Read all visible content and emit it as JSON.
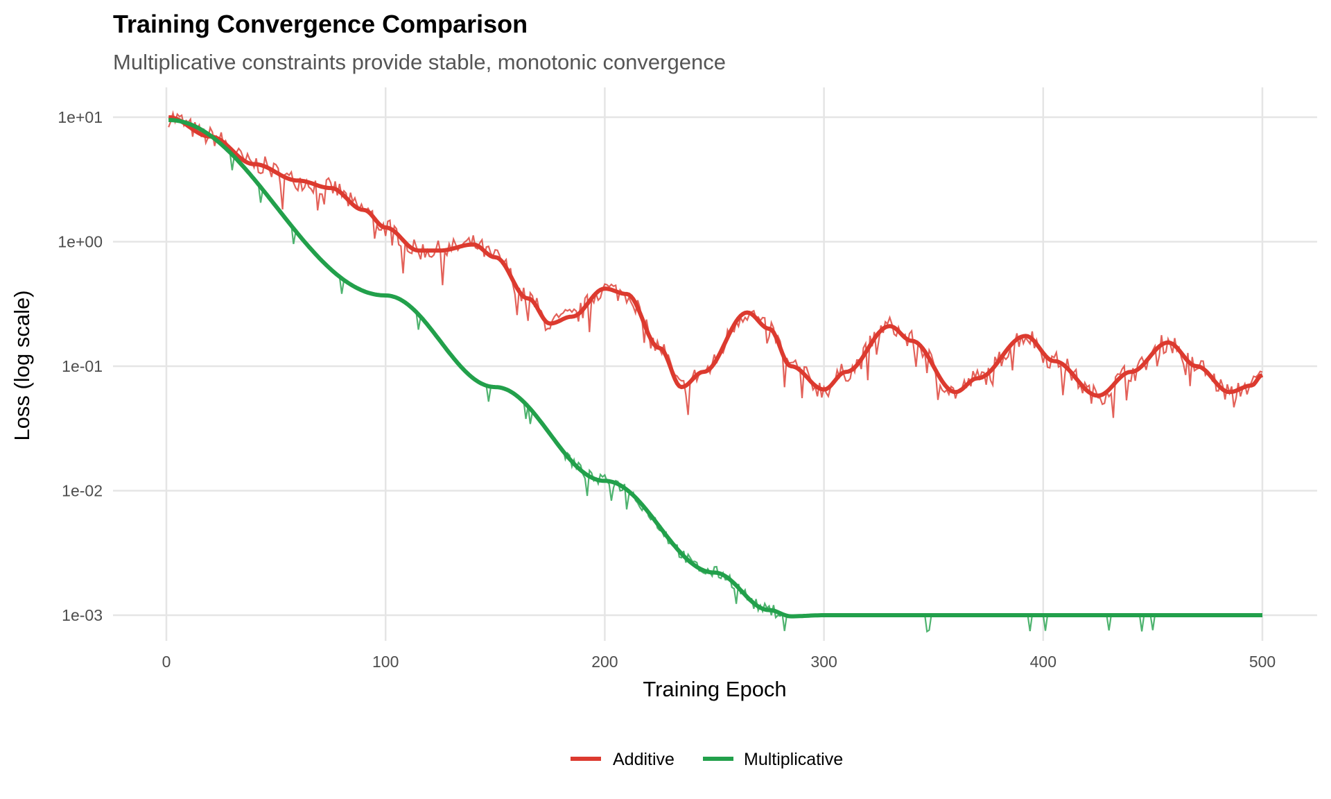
{
  "chart_data": {
    "type": "line",
    "title": "Training Convergence Comparison",
    "subtitle": "Multiplicative constraints provide stable, monotonic convergence",
    "xlabel": "Training Epoch",
    "ylabel": "Loss (log scale)",
    "xlim": [
      -25,
      525
    ],
    "ylim_log10": [
      -3.2,
      0.55
    ],
    "yscale": "log",
    "x_ticks": [
      0,
      100,
      200,
      300,
      400,
      500
    ],
    "x_tick_labels": [
      "0",
      "100",
      "200",
      "300",
      "400",
      "500"
    ],
    "y_ticks": [
      10,
      1,
      0.1,
      0.01,
      0.001
    ],
    "y_tick_labels": [
      "1e+01",
      "1e+00",
      "1e-01",
      "1e-02",
      "1e-03"
    ],
    "grid": true,
    "legend_position": "bottom",
    "series": [
      {
        "name": "Additive",
        "color": "#DC3A2F",
        "noise": 0.08,
        "points": [
          [
            1,
            10
          ],
          [
            20,
            7
          ],
          [
            40,
            4.2
          ],
          [
            60,
            3.1
          ],
          [
            75,
            2.7
          ],
          [
            90,
            1.8
          ],
          [
            100,
            1.3
          ],
          [
            115,
            0.85
          ],
          [
            125,
            0.85
          ],
          [
            140,
            0.95
          ],
          [
            150,
            0.75
          ],
          [
            165,
            0.35
          ],
          [
            175,
            0.22
          ],
          [
            185,
            0.25
          ],
          [
            200,
            0.42
          ],
          [
            210,
            0.38
          ],
          [
            225,
            0.14
          ],
          [
            235,
            0.068
          ],
          [
            245,
            0.09
          ],
          [
            265,
            0.27
          ],
          [
            275,
            0.2
          ],
          [
            285,
            0.1
          ],
          [
            300,
            0.065
          ],
          [
            310,
            0.09
          ],
          [
            330,
            0.21
          ],
          [
            340,
            0.16
          ],
          [
            360,
            0.062
          ],
          [
            370,
            0.08
          ],
          [
            392,
            0.175
          ],
          [
            405,
            0.11
          ],
          [
            425,
            0.058
          ],
          [
            440,
            0.09
          ],
          [
            457,
            0.155
          ],
          [
            470,
            0.1
          ],
          [
            485,
            0.062
          ],
          [
            495,
            0.07
          ],
          [
            500,
            0.085
          ]
        ]
      },
      {
        "name": "Multiplicative",
        "color": "#22A04B",
        "noise": 0.05,
        "points": [
          [
            1,
            9.5
          ],
          [
            100,
            0.37
          ],
          [
            150,
            0.068
          ],
          [
            200,
            0.012
          ],
          [
            250,
            0.0022
          ],
          [
            275,
            0.0011
          ],
          [
            285,
            0.00098
          ],
          [
            300,
            0.001
          ],
          [
            500,
            0.001
          ]
        ]
      }
    ]
  }
}
